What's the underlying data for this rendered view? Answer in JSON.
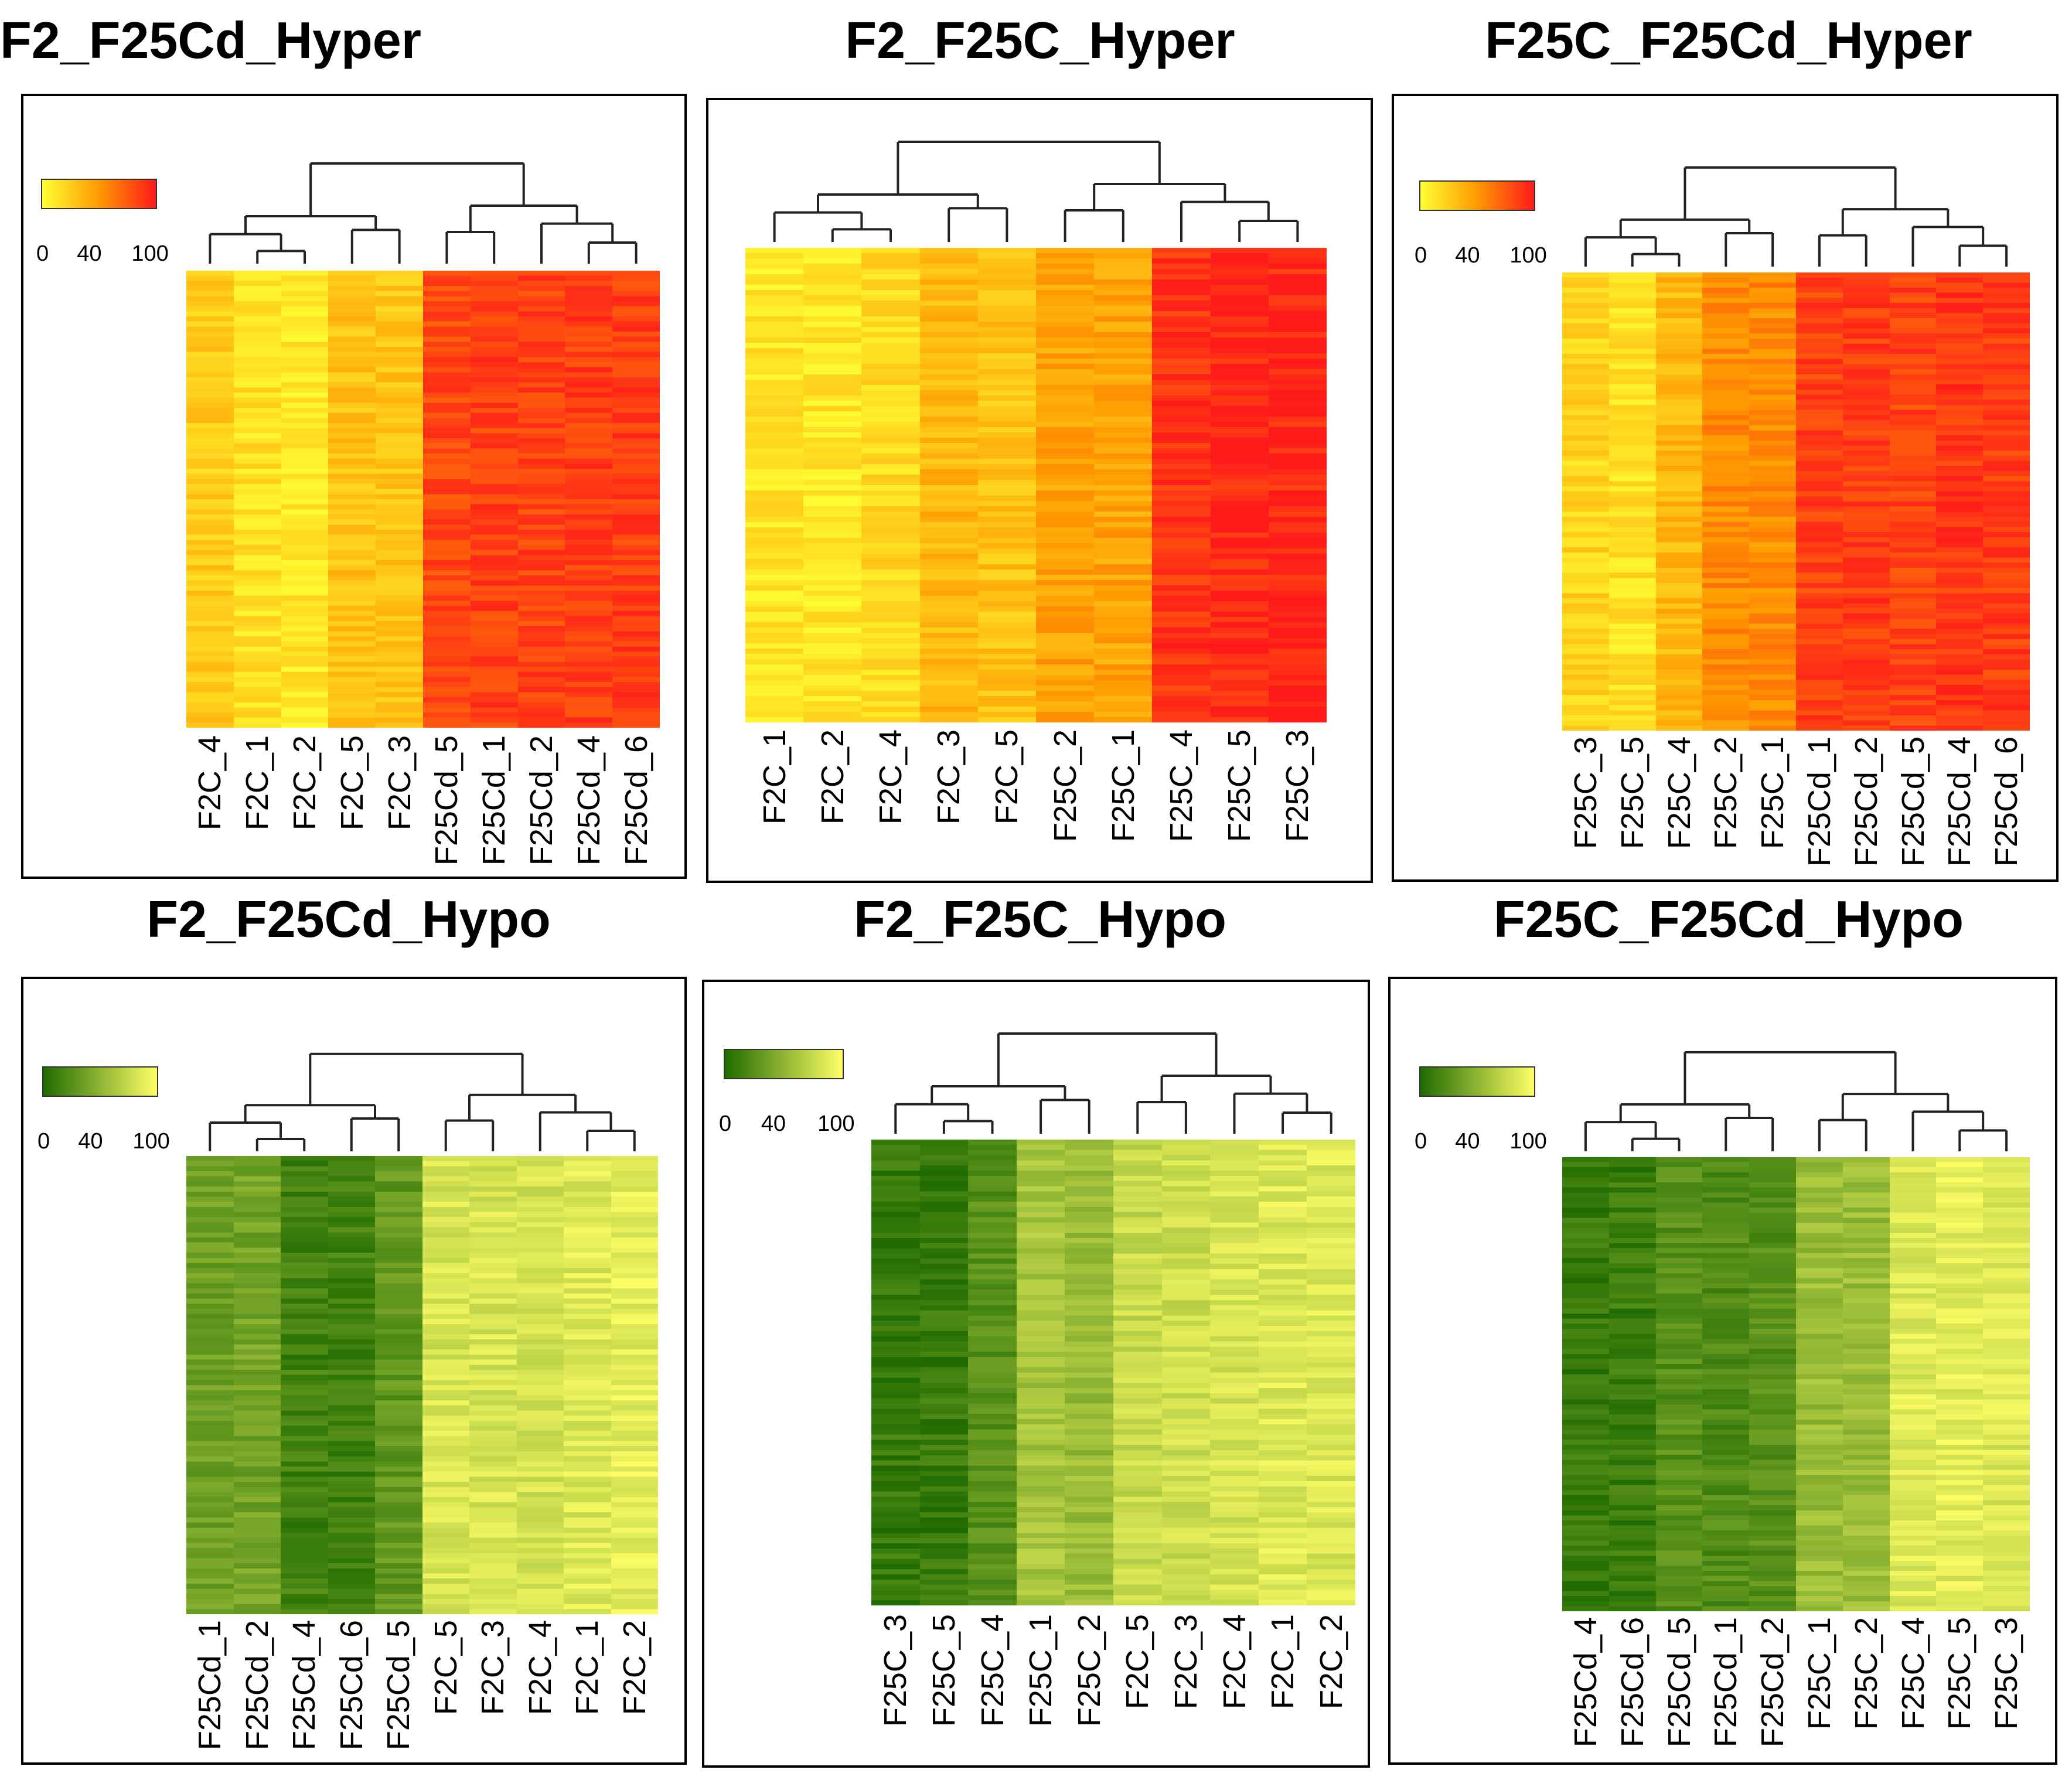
{
  "colors": {
    "hyper_low": "#ffff33",
    "hyper_mid": "#ff9900",
    "hyper_high": "#ff1a1a",
    "hypo_low": "#1f6b00",
    "hypo_high": "#ffff66"
  },
  "legend_ticks": [
    "0",
    "40",
    "100"
  ],
  "chart_data": [
    {
      "type": "heatmap",
      "title": "F2_F25Cd_Hyper",
      "palette": "hyper",
      "columns": [
        "F2C_4",
        "F2C_1",
        "F2C_2",
        "F2C_5",
        "F2C_3",
        "F25Cd_5",
        "F25Cd_1",
        "F25Cd_2",
        "F25Cd_4",
        "F25Cd_6"
      ],
      "column_means": [
        25,
        15,
        12,
        30,
        28,
        82,
        85,
        84,
        86,
        86
      ],
      "value_range": [
        0,
        100
      ]
    },
    {
      "type": "heatmap",
      "title": "F2_F25C_Hyper",
      "palette": "hyper",
      "columns": [
        "F2C_1",
        "F2C_2",
        "F2C_4",
        "F2C_3",
        "F2C_5",
        "F25C_2",
        "F25C_1",
        "F25C_4",
        "F25C_5",
        "F25C_3"
      ],
      "column_means": [
        12,
        12,
        18,
        35,
        30,
        45,
        45,
        90,
        95,
        95
      ],
      "value_range": [
        0,
        100
      ]
    },
    {
      "type": "heatmap",
      "title": "F25C_F25Cd_Hyper",
      "palette": "hyper",
      "columns": [
        "F25C_3",
        "F25C_5",
        "F25C_4",
        "F25C_2",
        "F25C_1",
        "F25Cd_1",
        "F25Cd_2",
        "F25Cd_5",
        "F25Cd_4",
        "F25Cd_6"
      ],
      "column_means": [
        20,
        15,
        35,
        55,
        55,
        85,
        86,
        84,
        88,
        86
      ],
      "value_range": [
        0,
        100
      ]
    },
    {
      "type": "heatmap",
      "title": "F2_F25Cd_Hypo",
      "palette": "hypo",
      "columns": [
        "F25Cd_1",
        "F25Cd_2",
        "F25Cd_4",
        "F25Cd_6",
        "F25Cd_5",
        "F2C_5",
        "F2C_3",
        "F2C_4",
        "F2C_1",
        "F2C_2"
      ],
      "column_means": [
        35,
        38,
        15,
        15,
        30,
        82,
        82,
        80,
        85,
        88
      ],
      "value_range": [
        0,
        100
      ]
    },
    {
      "type": "heatmap",
      "title": "F2_F25C_Hypo",
      "palette": "hypo",
      "columns": [
        "F25C_3",
        "F25C_5",
        "F25C_4",
        "F25C_1",
        "F25C_2",
        "F2C_5",
        "F2C_3",
        "F2C_4",
        "F2C_1",
        "F2C_2"
      ],
      "column_means": [
        10,
        10,
        25,
        60,
        55,
        75,
        78,
        82,
        85,
        85
      ],
      "value_range": [
        0,
        100
      ]
    },
    {
      "type": "heatmap",
      "title": "F25C_F25Cd_Hypo",
      "palette": "hypo",
      "columns": [
        "F25Cd_4",
        "F25Cd_6",
        "F25Cd_5",
        "F25Cd_1",
        "F25Cd_2",
        "F25C_1",
        "F25C_2",
        "F25C_4",
        "F25C_5",
        "F25C_3"
      ],
      "column_means": [
        10,
        12,
        25,
        22,
        25,
        55,
        55,
        85,
        88,
        85
      ],
      "value_range": [
        0,
        100
      ]
    }
  ]
}
